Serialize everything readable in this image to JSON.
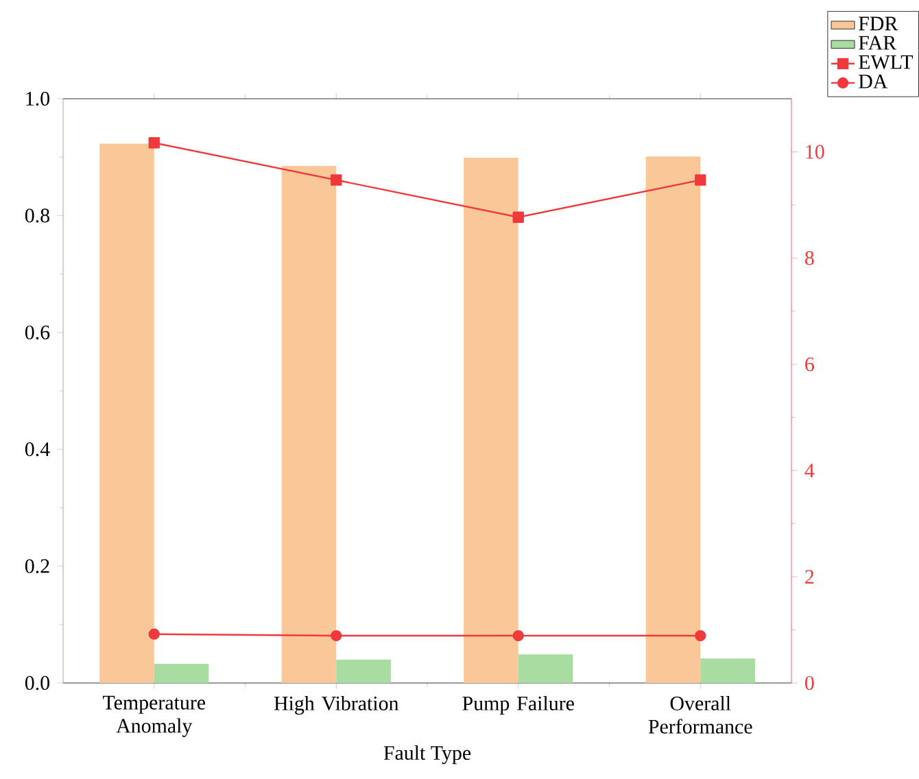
{
  "chart_data": {
    "type": "bar",
    "xlabel": "Fault Type",
    "categories": [
      "Temperature Anomaly",
      "High Vibration",
      "Pump Failure",
      "Overall Performance"
    ],
    "series": [
      {
        "name": "FDR",
        "color": "#fac898",
        "values": [
          0.923,
          0.885,
          0.899,
          0.901
        ]
      },
      {
        "name": "FAR",
        "color": "#a8dca0",
        "values": [
          0.033,
          0.04,
          0.049,
          0.042
        ]
      },
      {
        "name": "EWLT",
        "type": "line",
        "axis": "y2",
        "marker": "square",
        "color": "#f0393c",
        "values": [
          10.17,
          9.47,
          8.77,
          9.47
        ]
      },
      {
        "name": "DA",
        "type": "line",
        "axis": "y2",
        "marker": "circle",
        "color": "#f0393c",
        "values": [
          0.92,
          0.89,
          0.89,
          0.89
        ]
      }
    ],
    "ylim": [
      0,
      1.0
    ],
    "yticks": [
      {
        "value": 0,
        "label": "0.0"
      },
      {
        "value": 0.2,
        "label": "0.2"
      },
      {
        "value": 0.4,
        "label": "0.4"
      },
      {
        "value": 0.6,
        "label": "0.6"
      },
      {
        "value": 0.8,
        "label": "0.8"
      },
      {
        "value": 1.0,
        "label": "1.0"
      }
    ],
    "y2lim": [
      0,
      11
    ],
    "y2ticks": [
      0,
      2,
      4,
      6,
      8,
      10
    ],
    "legend": "top right"
  }
}
